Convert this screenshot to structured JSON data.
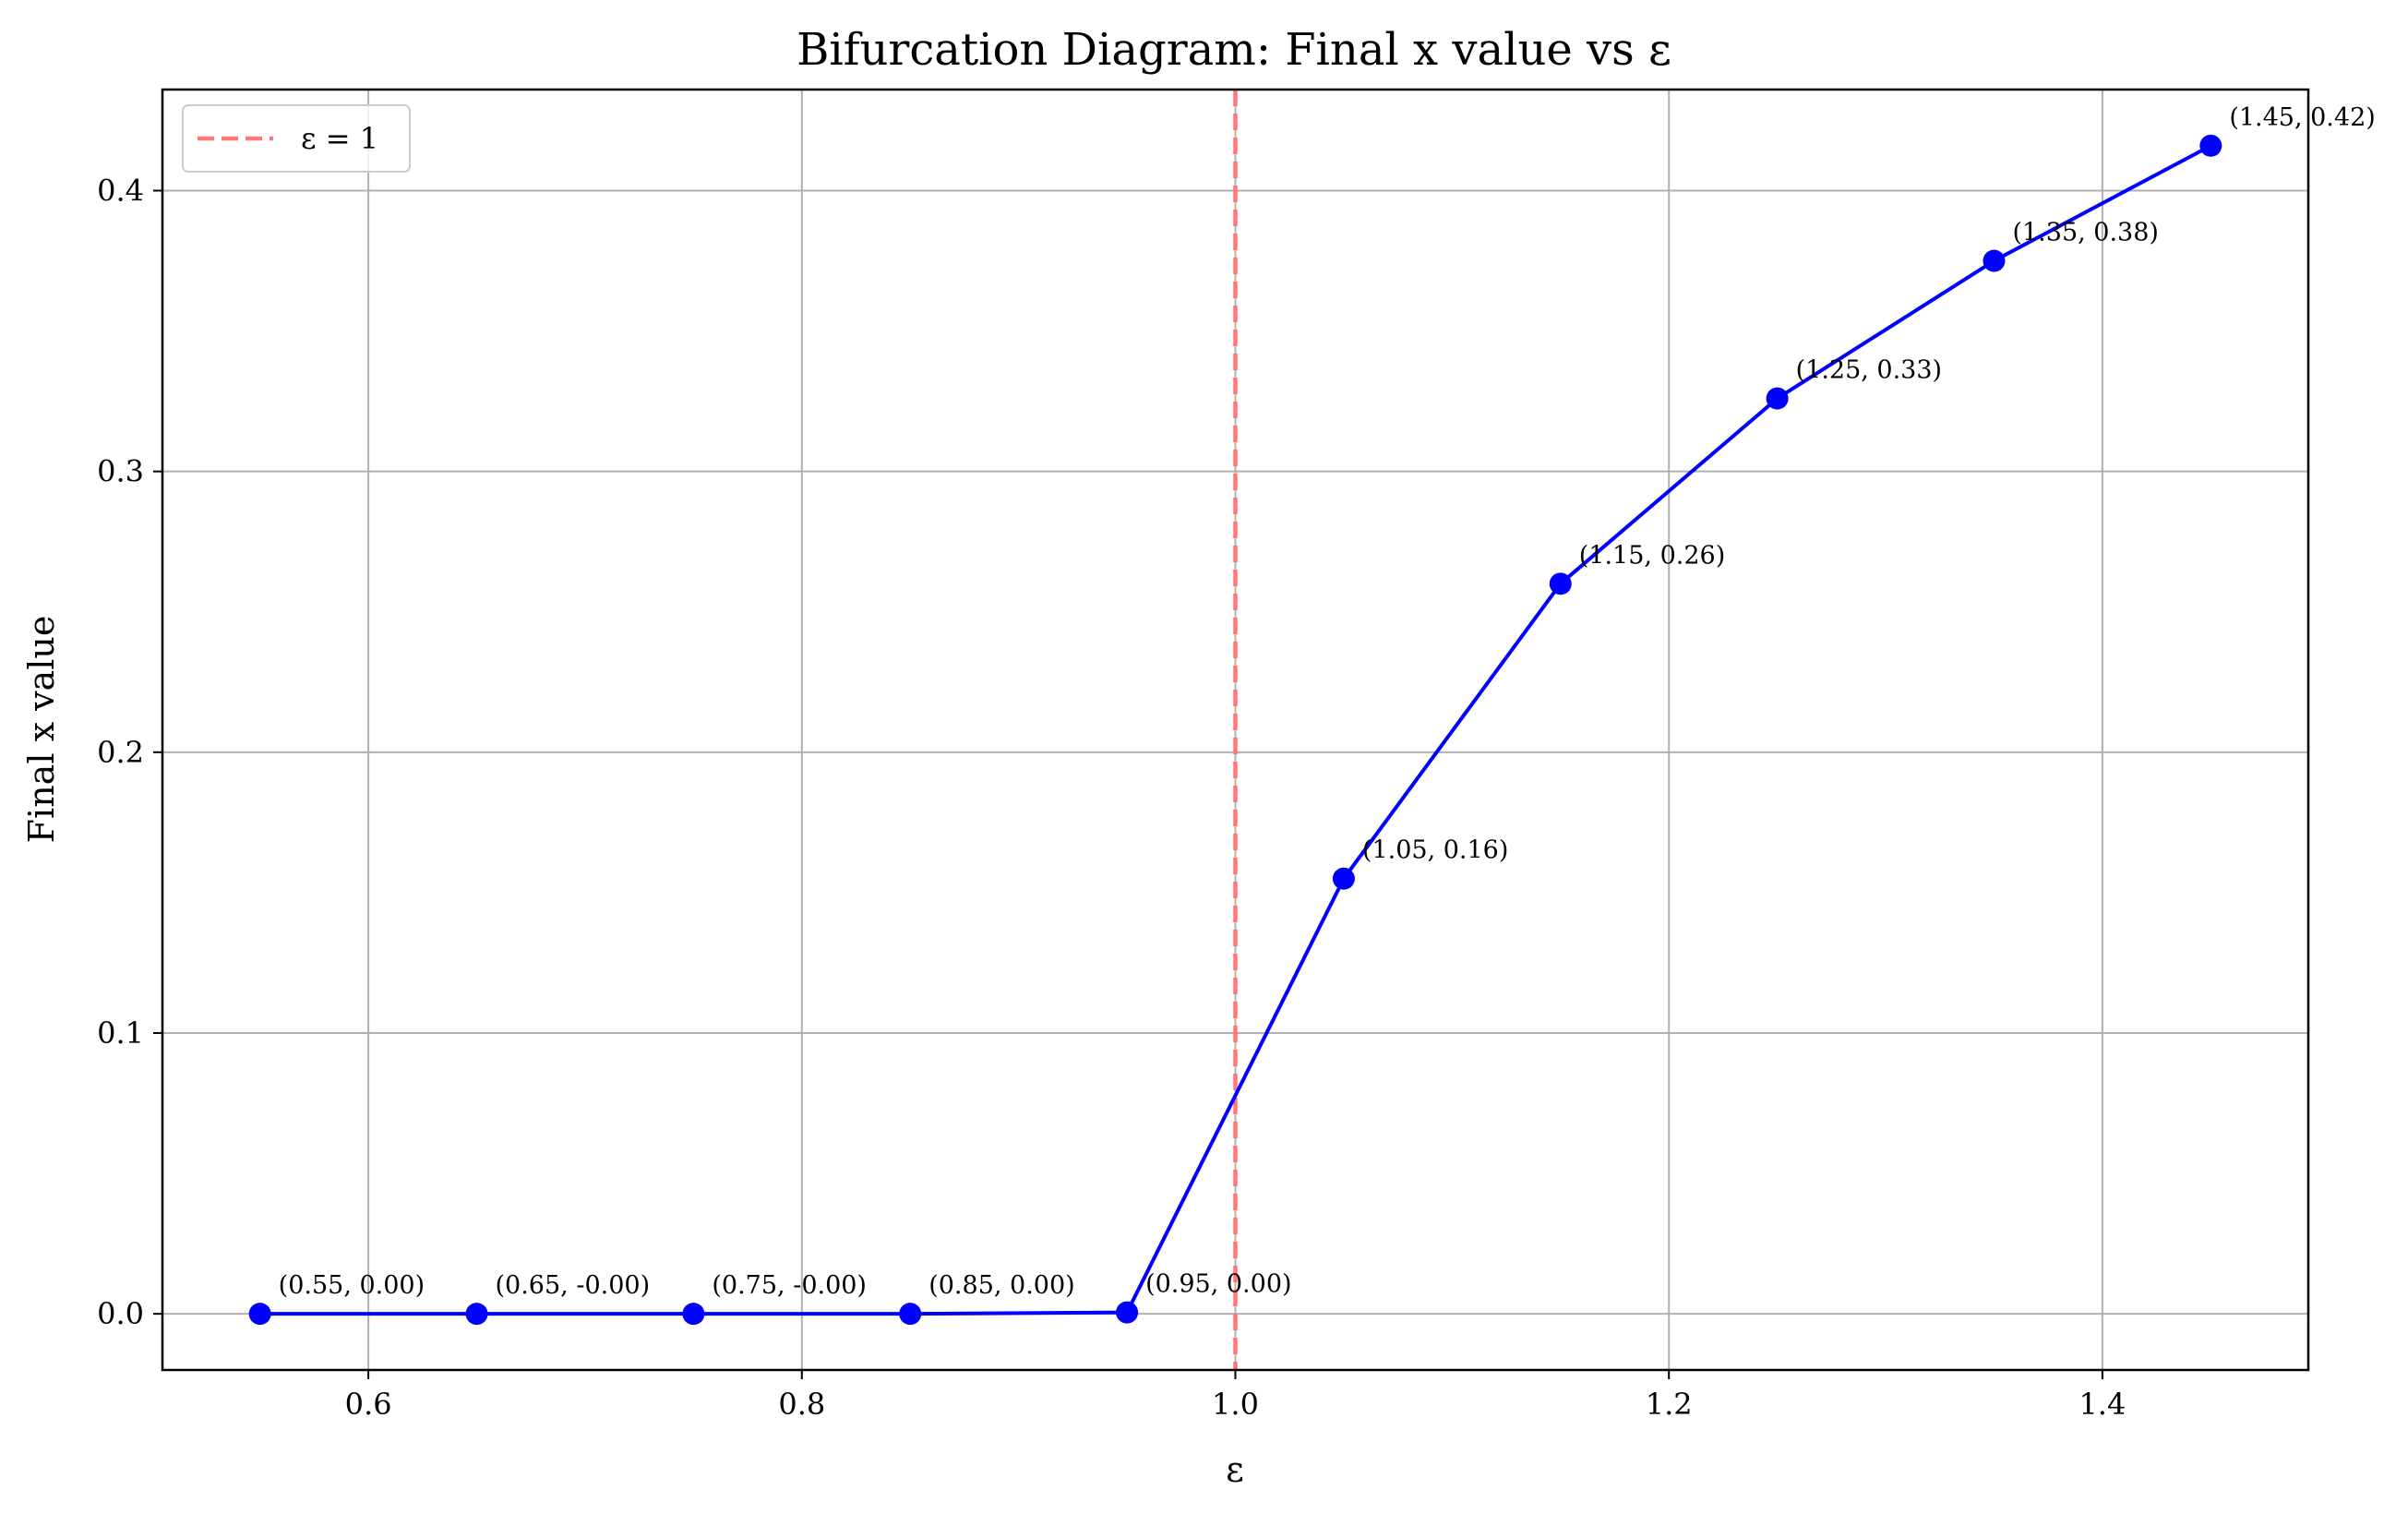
{
  "chart_data": {
    "type": "line",
    "title": "Bifurcation Diagram: Final x value vs ε",
    "xlabel": "ε",
    "ylabel": "Final x value",
    "xlim": [
      0.505,
      1.495
    ],
    "ylim": [
      -0.02,
      0.436
    ],
    "xticks": [
      0.6,
      0.8,
      1.0,
      1.2,
      1.4
    ],
    "xtick_labels": [
      "0.6",
      "0.8",
      "1.0",
      "1.2",
      "1.4"
    ],
    "yticks": [
      0.0,
      0.1,
      0.2,
      0.3,
      0.4
    ],
    "ytick_labels": [
      "0.0",
      "0.1",
      "0.2",
      "0.3",
      "0.4"
    ],
    "grid": true,
    "legend_position": "top-left",
    "series": [
      {
        "color": "#0000ff",
        "marker": "circle",
        "x": [
          0.55,
          0.65,
          0.75,
          0.85,
          0.95,
          1.05,
          1.15,
          1.25,
          1.35,
          1.45
        ],
        "y": [
          0.0,
          0.0,
          0.0,
          0.0,
          0.0005,
          0.155,
          0.26,
          0.326,
          0.375,
          0.416
        ],
        "labels": [
          "(0.55, 0.00)",
          "(0.65, -0.00)",
          "(0.75, -0.00)",
          "(0.85, 0.00)",
          "(0.95, 0.00)",
          "(1.05, 0.16)",
          "(1.15, 0.26)",
          "(1.25, 0.33)",
          "(1.35, 0.38)",
          "(1.45, 0.42)"
        ]
      }
    ],
    "reference_line": {
      "orientation": "vertical",
      "x": 1.0,
      "name": "ε = 1",
      "color": "#ff7777",
      "style": "dashed"
    }
  }
}
